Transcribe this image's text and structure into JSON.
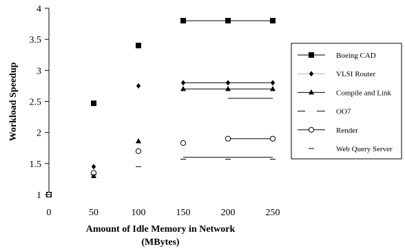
{
  "chart_data": {
    "type": "line",
    "xlabel": [
      "Amount of Idle Memory in Network",
      "(MBytes)"
    ],
    "ylabel": "Workload Speedup",
    "xlim": [
      0,
      250
    ],
    "ylim": [
      1,
      4
    ],
    "xticks": [
      "0",
      "50",
      "100",
      "150",
      "200",
      "250"
    ],
    "xtick_values": [
      0,
      50,
      100,
      150,
      200,
      250
    ],
    "yticks": [
      "1",
      "1.5",
      "2",
      "2.5",
      "3",
      "3.5",
      "4"
    ],
    "ytick_values": [
      1,
      1.5,
      2,
      2.5,
      3,
      3.5,
      4
    ],
    "grid": false,
    "legend_position": "right",
    "series": [
      {
        "name": "Boeing CAD",
        "marker": "square",
        "x": [
          0,
          50,
          100,
          150,
          200,
          250
        ],
        "y": [
          1.0,
          2.47,
          3.4,
          3.8,
          3.8,
          3.8
        ],
        "connected_from": 150
      },
      {
        "name": "VLSI Router",
        "marker": "diamond",
        "x": [
          0,
          50,
          100,
          150,
          200,
          250
        ],
        "y": [
          1.0,
          1.45,
          2.75,
          2.8,
          2.8,
          2.8
        ],
        "connected_from": 150
      },
      {
        "name": "Compile and Link",
        "marker": "triangle",
        "x": [
          0,
          50,
          100,
          150,
          200,
          250
        ],
        "y": [
          1.0,
          1.3,
          1.86,
          2.7,
          2.7,
          2.7
        ],
        "connected_from": 150
      },
      {
        "name": "OO7",
        "marker": "none",
        "x": [
          200,
          250
        ],
        "y": [
          2.55,
          2.55
        ],
        "connected_from": 200
      },
      {
        "name": "Render",
        "marker": "circle",
        "x": [
          0,
          50,
          100,
          150,
          200,
          250
        ],
        "y": [
          1.0,
          1.35,
          1.7,
          1.83,
          1.9,
          1.9
        ],
        "connected_from": 200
      },
      {
        "name": "Web Query Server",
        "marker": "dash",
        "x": [
          0,
          50,
          100,
          150,
          200,
          250
        ],
        "y": [
          1.0,
          1.32,
          1.45,
          1.57,
          1.57,
          1.57
        ],
        "connected_from": 150,
        "line_y": 1.6
      }
    ]
  }
}
